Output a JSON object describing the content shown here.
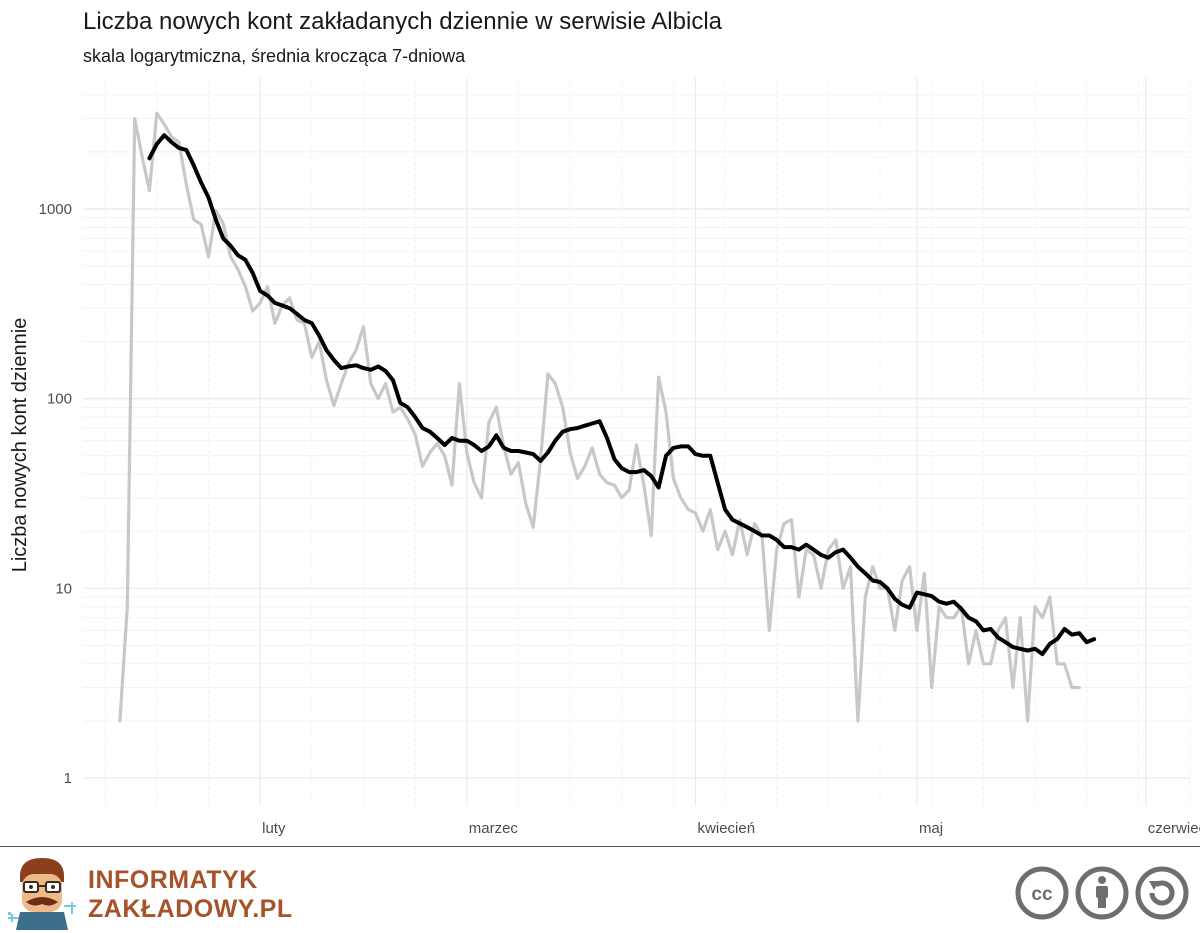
{
  "header": {
    "title": "Liczba nowych kont zakładanych dziennie w serwisie Albicla",
    "subtitle": "skala logarytmiczna, średnia krocząca 7-dniowa"
  },
  "chart_data": {
    "type": "line",
    "ylabel": "Liczba nowych kont dziennie",
    "y_scale": "log10",
    "ylim": [
      1,
      5000
    ],
    "y_ticks": [
      1,
      10,
      100,
      1000
    ],
    "y_tick_labels": [
      "1",
      "10",
      "100",
      "1000"
    ],
    "xlim": [
      "2021-01-08",
      "2021-06-07"
    ],
    "x_ticks": [
      "2021-02-01",
      "2021-03-01",
      "2021-04-01",
      "2021-05-01",
      "2021-06-01"
    ],
    "x_tick_labels": [
      "luty",
      "marzec",
      "kwiecień",
      "maj",
      "czerwiec"
    ],
    "grid": true,
    "colors": {
      "daily": "#c8c8c8",
      "rolling": "#000000",
      "grid": "#ebebeb"
    },
    "series": [
      {
        "start_date": "2021-01-13",
        "values": [
          2,
          8,
          3000,
          1900,
          1250,
          3200,
          2800,
          2400,
          2250,
          1350,
          880,
          830,
          560,
          980,
          840,
          560,
          480,
          390,
          290,
          320,
          390,
          250,
          310,
          340,
          260,
          250,
          165,
          200,
          125,
          92,
          120,
          155,
          180,
          240,
          120,
          100,
          120,
          85,
          90,
          78,
          65,
          44,
          52,
          58,
          50,
          35,
          120,
          52,
          36,
          30,
          75,
          90,
          56,
          40,
          46,
          28,
          21,
          48,
          135,
          120,
          90,
          52,
          38,
          44,
          55,
          40,
          36,
          35,
          30,
          33,
          57,
          35,
          19,
          130,
          85,
          38,
          30,
          26,
          25,
          20,
          26,
          16,
          20,
          15,
          23,
          15,
          22,
          19,
          6,
          16,
          22,
          23,
          9,
          16,
          15,
          10,
          16,
          18,
          10,
          13,
          2,
          9,
          13,
          10,
          10,
          6,
          11,
          13,
          6,
          12,
          3,
          8,
          7,
          7,
          8,
          4,
          6,
          4,
          4,
          6,
          7,
          3,
          7,
          2,
          8,
          7,
          9,
          4,
          4,
          3,
          3
        ]
      },
      {
        "start_date": "2021-01-17",
        "values": [
          1850,
          2200,
          2450,
          2250,
          2100,
          2050,
          1700,
          1380,
          1150,
          880,
          700,
          640,
          570,
          540,
          460,
          370,
          350,
          320,
          310,
          300,
          280,
          260,
          250,
          215,
          180,
          160,
          145,
          148,
          150,
          145,
          142,
          148,
          140,
          125,
          95,
          90,
          80,
          70,
          67,
          62,
          57,
          62,
          60,
          60,
          57,
          53,
          56,
          64,
          55,
          53,
          53,
          52,
          51,
          47,
          52,
          60,
          67,
          69,
          70,
          72,
          74,
          76,
          62,
          48,
          43,
          41,
          41,
          42,
          39,
          34,
          50,
          55,
          56,
          56,
          51,
          50,
          50,
          36,
          26,
          23,
          22,
          21,
          20,
          19,
          19,
          18,
          16.5,
          16.5,
          16,
          17,
          16,
          15,
          14.5,
          15.5,
          16,
          14.5,
          13,
          12,
          11,
          10.8,
          10,
          8.8,
          8.2,
          7.9,
          9.5,
          9.3,
          9.1,
          8.5,
          8.3,
          8.5,
          7.8,
          7,
          6.7,
          6,
          6.1,
          5.5,
          5.2,
          4.9,
          4.8,
          4.7,
          4.8,
          4.5,
          5.1,
          5.4,
          6.1,
          5.7,
          5.8,
          5.2,
          5.4
        ]
      }
    ]
  },
  "footer": {
    "brand_line1": "INFORMATYK",
    "brand_line2": "ZAKŁADOWY.PL",
    "license_icons": [
      "cc-icon",
      "by-icon",
      "sa-icon"
    ]
  }
}
